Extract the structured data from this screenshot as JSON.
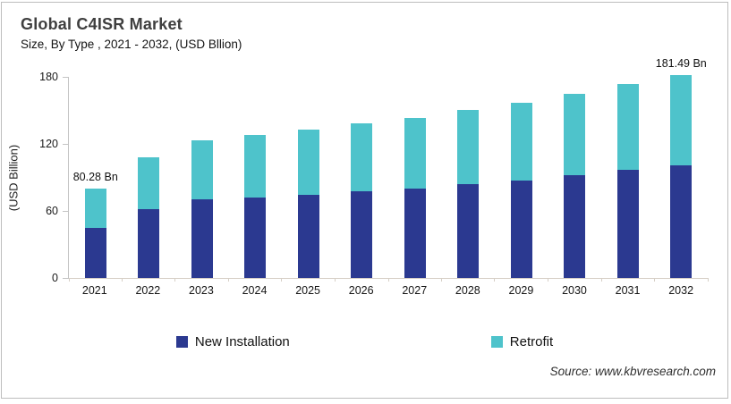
{
  "header": {
    "title": "Global C4ISR Market",
    "subtitle": "Size, By Type , 2021 - 2032, (USD Bllion)"
  },
  "chart_data": {
    "type": "bar",
    "stacked": true,
    "title": "Global C4ISR Market",
    "subtitle": "Size, By Type , 2021 - 2032, (USD Bllion)",
    "ylabel": "(USD Billion)",
    "ylim": [
      0,
      180
    ],
    "yticks": [
      0,
      60,
      120,
      180
    ],
    "grid": false,
    "legend_position": "bottom",
    "categories": [
      "2021",
      "2022",
      "2023",
      "2024",
      "2025",
      "2026",
      "2027",
      "2028",
      "2029",
      "2030",
      "2031",
      "2032"
    ],
    "series": [
      {
        "name": "New Installation",
        "color": "#2B3990",
        "values": [
          45.2,
          61.5,
          70.3,
          72.1,
          74.5,
          77.4,
          80.1,
          84.0,
          87.6,
          92.2,
          96.5,
          101.2
        ]
      },
      {
        "name": "Retrofit",
        "color": "#4EC3CB",
        "values": [
          35.08,
          46.9,
          53.2,
          56.0,
          58.2,
          60.7,
          63.5,
          66.2,
          69.1,
          72.4,
          77.0,
          80.29
        ]
      }
    ],
    "totals_labeled": [
      {
        "category_index": 0,
        "text": "80.28 Bn"
      },
      {
        "category_index": 11,
        "text": "181.49 Bn"
      }
    ]
  },
  "legend": {
    "items": [
      {
        "label": "New Installation",
        "color": "#2B3990"
      },
      {
        "label": "Retrofit",
        "color": "#4EC3CB"
      }
    ]
  },
  "footer": {
    "source": "Source: www.kbvresearch.com"
  }
}
